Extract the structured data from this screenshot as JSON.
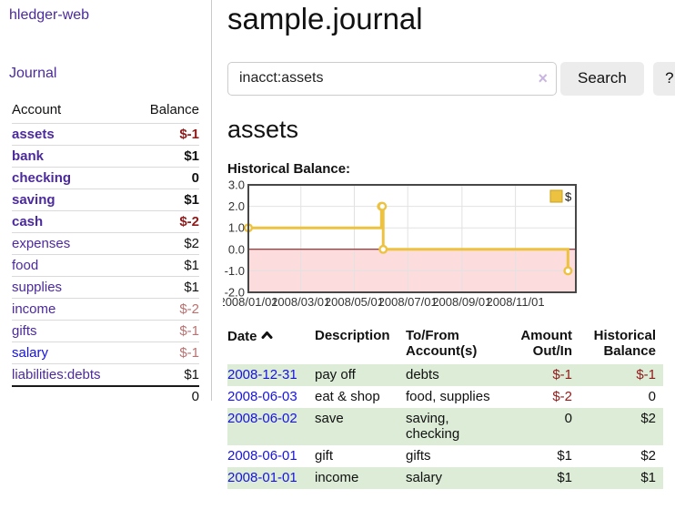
{
  "colors": {
    "link_purple": "#4b2a9c",
    "link_blue": "#1713e0",
    "negative_strong": "#8f1b1b",
    "negative_faded": "#b87272",
    "row_stripe_green": "#dcecd7",
    "button_bg": "#ececec"
  },
  "icons": {
    "clear_search": "×",
    "sort_ascending": "chevron-up"
  },
  "sidebar": {
    "brand": "hledger-web",
    "nav": {
      "journal": "Journal"
    },
    "accounts": {
      "headers": {
        "account": "Account",
        "balance": "Balance"
      },
      "rows": [
        {
          "name": "assets",
          "depth": 1,
          "balance": "$-1"
        },
        {
          "name": "bank",
          "depth": 2,
          "balance": "$1"
        },
        {
          "name": "checking",
          "depth": 3,
          "balance": "0"
        },
        {
          "name": "saving",
          "depth": 3,
          "balance": "$1"
        },
        {
          "name": "cash",
          "depth": 2,
          "balance": "$-2"
        },
        {
          "name": "expenses",
          "depth": 1,
          "balance": "$2"
        },
        {
          "name": "food",
          "depth": 2,
          "balance": "$1"
        },
        {
          "name": "supplies",
          "depth": 2,
          "balance": "$1"
        },
        {
          "name": "income",
          "depth": 1,
          "balance": "$-2"
        },
        {
          "name": "gifts",
          "depth": 2,
          "balance": "$-1"
        },
        {
          "name": "salary",
          "depth": 2,
          "balance": "$-1"
        },
        {
          "name": "liabilities:debts",
          "depth": 1,
          "balance": "$1"
        }
      ],
      "total": "0"
    }
  },
  "header": {
    "title": "sample.journal"
  },
  "search": {
    "query": "inacct:assets",
    "clear_icon": "×",
    "button_label": "Search",
    "help_label": "?"
  },
  "account_page": {
    "title": "assets",
    "chart_label": "Historical Balance:"
  },
  "chart_data": {
    "type": "line",
    "step": true,
    "title": "Historical Balance",
    "series": [
      {
        "name": "$",
        "color": "#edc240",
        "points": [
          {
            "date": "2008-01-01",
            "day": 0,
            "value": 1
          },
          {
            "date": "2008-06-01",
            "day": 152,
            "value": 2
          },
          {
            "date": "2008-06-02",
            "day": 153,
            "value": 2
          },
          {
            "date": "2008-06-03",
            "day": 154,
            "value": 0
          },
          {
            "date": "2008-12-31",
            "day": 365,
            "value": -1
          }
        ]
      }
    ],
    "x_ticks": [
      {
        "day": 0,
        "label": "2008/01/01"
      },
      {
        "day": 60,
        "label": "2008/03/01"
      },
      {
        "day": 121,
        "label": "2008/05/01"
      },
      {
        "day": 182,
        "label": "2008/07/01"
      },
      {
        "day": 244,
        "label": "2008/09/01"
      },
      {
        "day": 305,
        "label": "2008/11/01"
      }
    ],
    "y_ticks": [
      "3.0",
      "2.0",
      "1.0",
      "0.0",
      "-1.0",
      "-2.0"
    ],
    "ylim": [
      -2,
      3
    ],
    "xlim_days": [
      0,
      374
    ],
    "legend": {
      "position": "top-right",
      "label": "$"
    },
    "grid": true,
    "grid_color": "#e2e2e2",
    "border_color": "#474747",
    "zero_line_color": "#8b0000",
    "negative_fill": "#fcdcdc"
  },
  "register": {
    "headers": {
      "date": "Date",
      "description": "Description",
      "accounts": "To/From Account(s)",
      "amount": "Amount Out/In",
      "balance": "Historical Balance"
    },
    "rows": [
      {
        "date": "2008-12-31",
        "description": "pay off",
        "accounts": "debts",
        "amount": "$-1",
        "balance": "$-1"
      },
      {
        "date": "2008-06-03",
        "description": "eat & shop",
        "accounts": "food, supplies",
        "amount": "$-2",
        "balance": "0"
      },
      {
        "date": "2008-06-02",
        "description": "save",
        "accounts": "saving, checking",
        "amount": "0",
        "balance": "$2"
      },
      {
        "date": "2008-06-01",
        "description": "gift",
        "accounts": "gifts",
        "amount": "$1",
        "balance": "$2"
      },
      {
        "date": "2008-01-01",
        "description": "income",
        "accounts": "salary",
        "amount": "$1",
        "balance": "$1"
      }
    ]
  }
}
